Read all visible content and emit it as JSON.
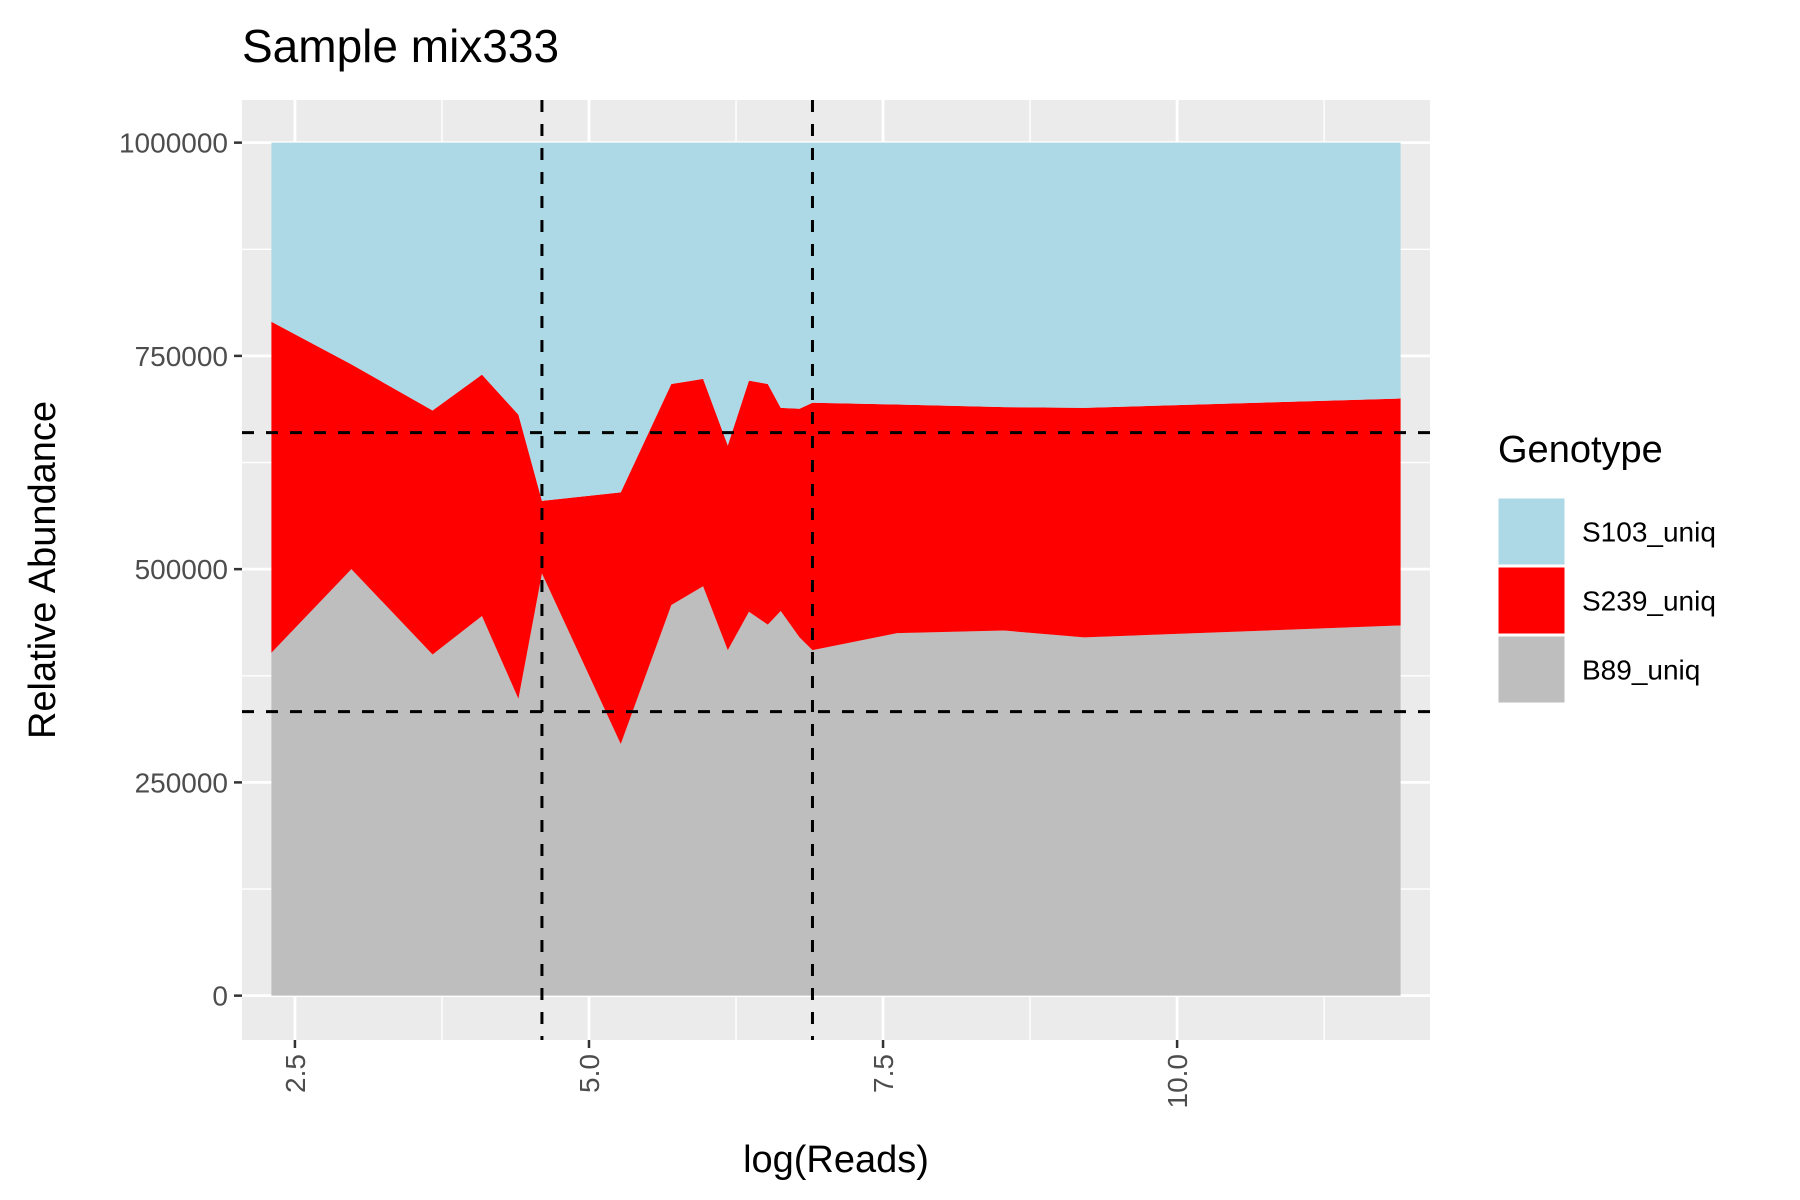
{
  "chart_data": {
    "type": "area",
    "stacked": true,
    "title": "Sample mix333",
    "xlabel": "log(Reads)",
    "ylabel": "Relative Abundance",
    "xlim": [
      2.05,
      12.15
    ],
    "ylim": [
      -52000,
      1050000
    ],
    "x_ticks": [
      2.5,
      5.0,
      7.5,
      10.0
    ],
    "x_tick_labels": [
      "2.5",
      "5.0",
      "7.5",
      "10.0"
    ],
    "y_ticks": [
      0,
      250000,
      500000,
      750000,
      1000000
    ],
    "y_tick_labels": [
      "0",
      "250000",
      "500000",
      "750000",
      "1000000"
    ],
    "grid": true,
    "legend": {
      "title": "Genotype",
      "position": "right",
      "entries": [
        "S103_uniq",
        "S239_uniq",
        "B89_uniq"
      ]
    },
    "colors": {
      "S103_uniq": "#add8e6",
      "S239_uniq": "#ff0000",
      "B89_uniq": "#bebebe",
      "panel_background": "#ebebeb",
      "grid": "#ffffff"
    },
    "x": [
      2.3,
      2.98,
      3.67,
      4.09,
      4.4,
      4.6,
      5.27,
      5.7,
      5.97,
      6.18,
      6.36,
      6.52,
      6.63,
      6.79,
      6.9,
      7.62,
      8.53,
      9.21,
      11.9
    ],
    "series": [
      {
        "name": "B89_uniq",
        "values": [
          402000,
          500000,
          400000,
          445000,
          348000,
          495000,
          295000,
          458000,
          480000,
          405000,
          450000,
          435000,
          451000,
          420000,
          405000,
          425000,
          428000,
          420000,
          434000
        ]
      },
      {
        "name": "S239_uniq",
        "values": [
          388000,
          240000,
          286000,
          283000,
          333000,
          85000,
          295000,
          259000,
          243000,
          240000,
          271000,
          282000,
          238000,
          268000,
          290000,
          268000,
          262000,
          269000,
          266000
        ]
      },
      {
        "name": "S103_uniq",
        "values": [
          210000,
          260000,
          314000,
          272000,
          319000,
          420000,
          410000,
          283000,
          277000,
          355000,
          279000,
          283000,
          311000,
          312000,
          305000,
          307000,
          310000,
          311000,
          300000
        ]
      }
    ],
    "reference_lines": {
      "vertical_x": [
        4.6,
        6.9
      ],
      "horizontal_y": [
        333000,
        660000
      ],
      "style": "dashed"
    }
  }
}
